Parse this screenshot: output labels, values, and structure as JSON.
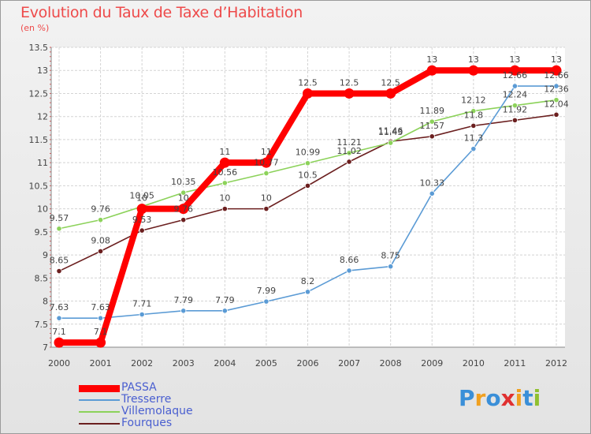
{
  "chart_data": {
    "type": "line",
    "title": "Evolution du Taux de Taxe d’Habitation",
    "subtitle": "(en %)",
    "x": [
      "2000",
      "2001",
      "2002",
      "2003",
      "2004",
      "2005",
      "2006",
      "2007",
      "2008",
      "2009",
      "2010",
      "2011",
      "2012"
    ],
    "y_ticks": [
      "7",
      "7.5",
      "8",
      "8.5",
      "9",
      "9.5",
      "10",
      "10.5",
      "11",
      "11.5",
      "12",
      "12.5",
      "13",
      "13.5"
    ],
    "ylim": [
      7,
      13.5
    ],
    "grid": true,
    "legend_position": "bottom-left",
    "series": [
      {
        "name": "PASSA",
        "color": "#ff0000",
        "values": [
          7.1,
          7.1,
          10,
          10,
          11,
          11,
          12.5,
          12.5,
          12.5,
          13,
          13,
          13,
          13
        ],
        "labels": [
          "7.1",
          "7.1",
          "10",
          "10",
          "11",
          "11",
          "12.5",
          "12.5",
          "12.5",
          "13",
          "13",
          "13",
          "13"
        ]
      },
      {
        "name": "Tresserre",
        "color": "#5b9bd5",
        "values": [
          7.63,
          7.63,
          7.71,
          7.79,
          7.79,
          7.99,
          8.2,
          8.66,
          8.75,
          10.33,
          11.3,
          12.66,
          12.66
        ],
        "labels": [
          "7.63",
          "7.63",
          "7.71",
          "7.79",
          "7.79",
          "7.99",
          "8.2",
          "8.66",
          "8.75",
          "10.33",
          "11.3",
          "12.66",
          "12.66"
        ]
      },
      {
        "name": "Villemolaque",
        "color": "#8cd25a",
        "values": [
          9.57,
          9.76,
          10.05,
          10.35,
          10.56,
          10.77,
          10.99,
          11.21,
          11.43,
          11.89,
          12.12,
          12.24,
          12.36
        ],
        "labels": [
          "9.57",
          "9.76",
          "10.05",
          "10.35",
          "10.56",
          "10.77",
          "10.99",
          "11.21",
          "11.43",
          "11.89",
          "12.12",
          "12.24",
          "12.36"
        ]
      },
      {
        "name": "Fourques",
        "color": "#6b1f1f",
        "values": [
          8.65,
          9.08,
          9.53,
          9.76,
          10,
          10,
          10.5,
          11.02,
          11.46,
          11.57,
          11.8,
          11.92,
          12.04
        ],
        "labels": [
          "8.65",
          "9.08",
          "9.53",
          "9.76",
          "10",
          "10",
          "10.5",
          "11.02",
          "11.46",
          "11.57",
          "11.8",
          "11.92",
          "12.04"
        ]
      }
    ]
  },
  "brand": {
    "letters": [
      "P",
      "r",
      "o",
      "x",
      "i",
      "t",
      "i"
    ],
    "colors": [
      "#3a8fd8",
      "#f0a020",
      "#3a8fd8",
      "#e03030",
      "#f0a020",
      "#3a8fd8",
      "#90c030"
    ]
  }
}
